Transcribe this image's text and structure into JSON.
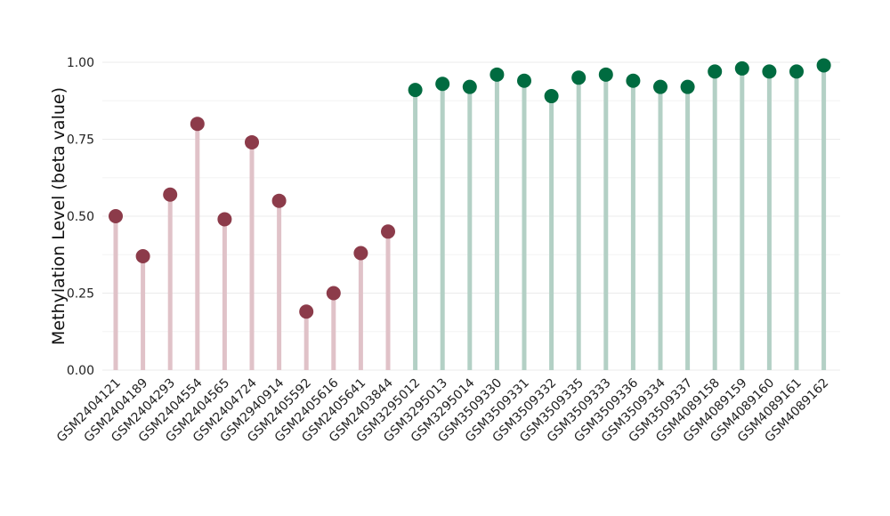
{
  "chart_data": {
    "type": "lollipop",
    "title": "",
    "xlabel": "",
    "ylabel": "Methylation Level (beta value)",
    "ylim": [
      0,
      1.0
    ],
    "y_ticks": [
      "0.00",
      "0.25",
      "0.50",
      "0.75",
      "1.00"
    ],
    "grid": true,
    "legend": "none",
    "colors": {
      "group1_point": "#8c3b4a",
      "group1_stem": "#e0c2c8",
      "group2_point": "#006b40",
      "group2_stem": "#b3d0c5"
    },
    "categories": [
      "GSM2404121",
      "GSM2404189",
      "GSM2404293",
      "GSM2404554",
      "GSM2404565",
      "GSM2404724",
      "GSM2940914",
      "GSM2405592",
      "GSM2405616",
      "GSM2405641",
      "GSM2403844",
      "GSM3295012",
      "GSM3295013",
      "GSM3295014",
      "GSM3509330",
      "GSM3509331",
      "GSM3509332",
      "GSM3509335",
      "GSM3509333",
      "GSM3509336",
      "GSM3509334",
      "GSM3509337",
      "GSM4089158",
      "GSM4089159",
      "GSM4089160",
      "GSM4089161",
      "GSM4089162"
    ],
    "values": [
      0.5,
      0.37,
      0.57,
      0.8,
      0.49,
      0.74,
      0.55,
      0.19,
      0.25,
      0.38,
      0.45,
      0.91,
      0.93,
      0.92,
      0.96,
      0.94,
      0.89,
      0.95,
      0.96,
      0.94,
      0.92,
      0.92,
      0.97,
      0.98,
      0.97,
      0.97,
      0.99
    ],
    "groups": [
      1,
      1,
      1,
      1,
      1,
      1,
      1,
      1,
      1,
      1,
      1,
      2,
      2,
      2,
      2,
      2,
      2,
      2,
      2,
      2,
      2,
      2,
      2,
      2,
      2,
      2,
      2
    ]
  }
}
